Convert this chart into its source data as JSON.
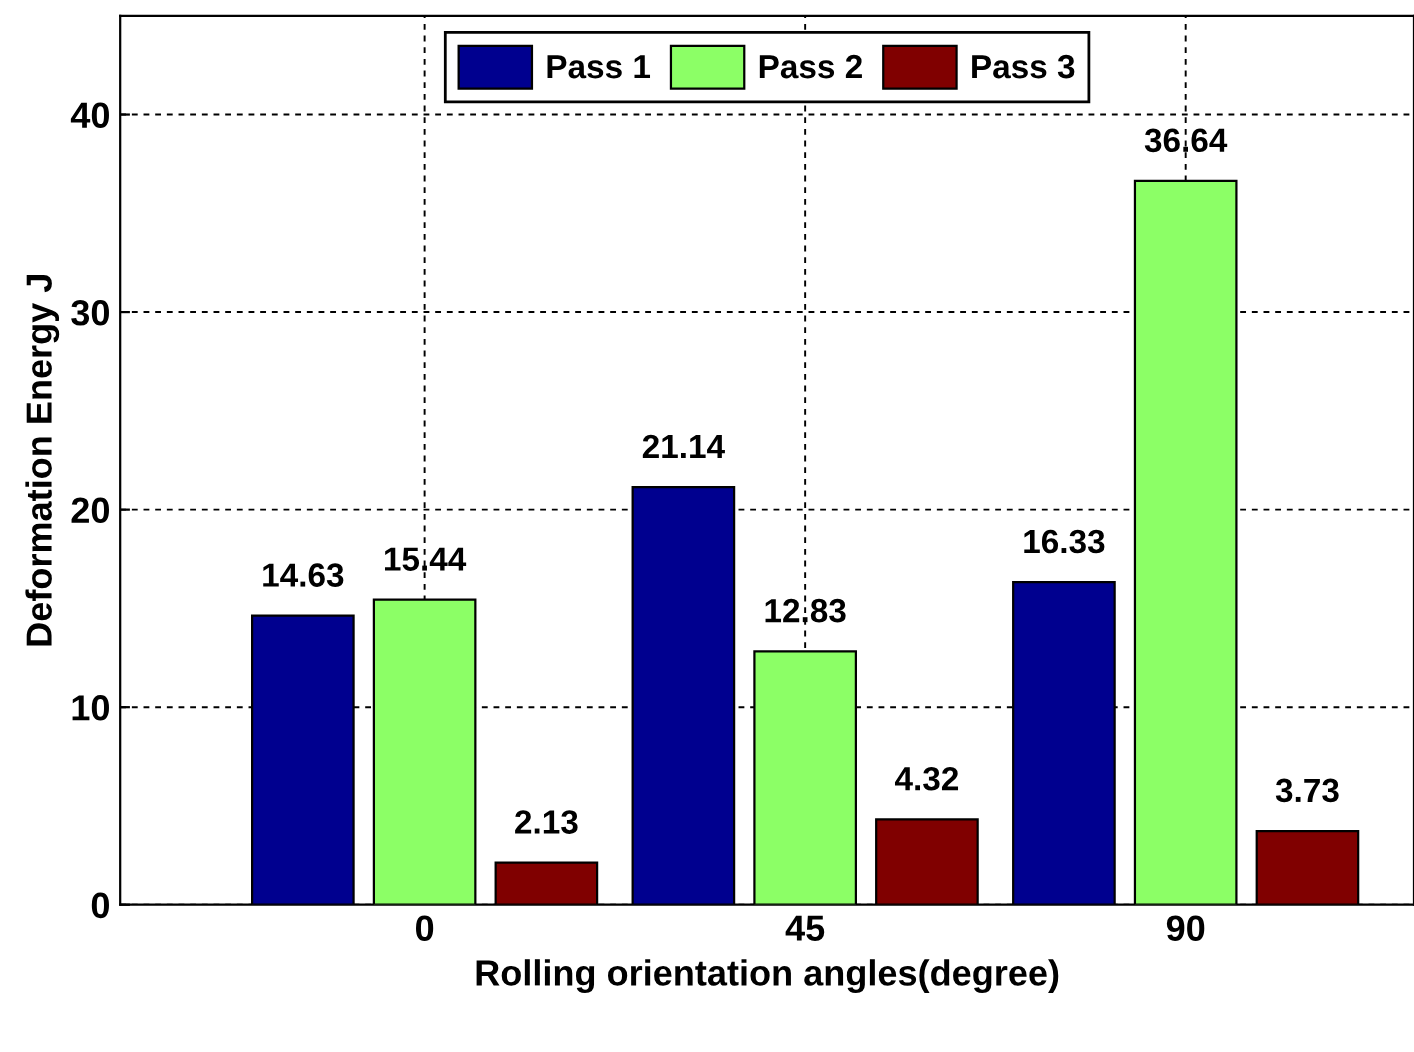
{
  "chart_data": {
    "type": "bar",
    "xlabel": "Rolling orientation angles(degree)",
    "ylabel": "Deformation Energy J",
    "categories": [
      "0",
      "45",
      "90"
    ],
    "series": [
      {
        "name": "Pass 1",
        "color": "#00008f",
        "values": [
          14.63,
          21.14,
          16.33
        ]
      },
      {
        "name": "Pass 2",
        "color": "#8cff66",
        "values": [
          15.44,
          12.83,
          36.64
        ]
      },
      {
        "name": "Pass 3",
        "color": "#800000",
        "values": [
          2.13,
          4.32,
          3.73
        ]
      }
    ],
    "ylim": [
      0,
      45
    ],
    "yticks": [
      0,
      10,
      20,
      30,
      40
    ],
    "grid": true,
    "legend": "top",
    "data_labels": true
  }
}
